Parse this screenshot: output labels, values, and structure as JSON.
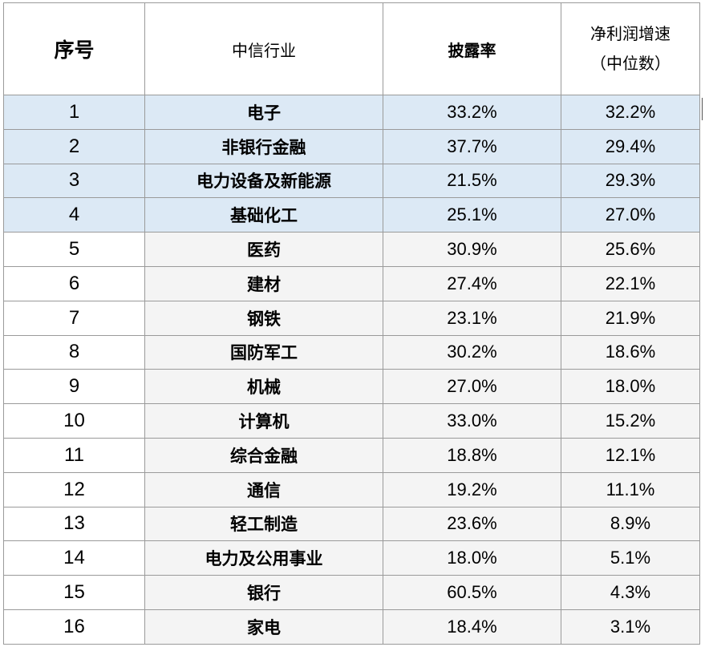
{
  "header": {
    "seq": "序号",
    "industry": "中信行业",
    "disclosure": "披露率",
    "growth_line1": "净利润增速",
    "growth_line2": "（中位数）"
  },
  "rows": [
    {
      "seq": "1",
      "industry": "电子",
      "disclosure": "33.2%",
      "growth": "32.2%",
      "highlight": true
    },
    {
      "seq": "2",
      "industry": "非银行金融",
      "disclosure": "37.7%",
      "growth": "29.4%",
      "highlight": true
    },
    {
      "seq": "3",
      "industry": "电力设备及新能源",
      "disclosure": "21.5%",
      "growth": "29.3%",
      "highlight": true
    },
    {
      "seq": "4",
      "industry": "基础化工",
      "disclosure": "25.1%",
      "growth": "27.0%",
      "highlight": true
    },
    {
      "seq": "5",
      "industry": "医药",
      "disclosure": "30.9%",
      "growth": "25.6%",
      "highlight": false
    },
    {
      "seq": "6",
      "industry": "建材",
      "disclosure": "27.4%",
      "growth": "22.1%",
      "highlight": false
    },
    {
      "seq": "7",
      "industry": "钢铁",
      "disclosure": "23.1%",
      "growth": "21.9%",
      "highlight": false
    },
    {
      "seq": "8",
      "industry": "国防军工",
      "disclosure": "30.2%",
      "growth": "18.6%",
      "highlight": false
    },
    {
      "seq": "9",
      "industry": "机械",
      "disclosure": "27.0%",
      "growth": "18.0%",
      "highlight": false
    },
    {
      "seq": "10",
      "industry": "计算机",
      "disclosure": "33.0%",
      "growth": "15.2%",
      "highlight": false
    },
    {
      "seq": "11",
      "industry": "综合金融",
      "disclosure": "18.8%",
      "growth": "12.1%",
      "highlight": false
    },
    {
      "seq": "12",
      "industry": "通信",
      "disclosure": "19.2%",
      "growth": "11.1%",
      "highlight": false
    },
    {
      "seq": "13",
      "industry": "轻工制造",
      "disclosure": "23.6%",
      "growth": "8.9%",
      "highlight": false
    },
    {
      "seq": "14",
      "industry": "电力及公用事业",
      "disclosure": "18.0%",
      "growth": "5.1%",
      "highlight": false
    },
    {
      "seq": "15",
      "industry": "银行",
      "disclosure": "60.5%",
      "growth": "4.3%",
      "highlight": false
    },
    {
      "seq": "16",
      "industry": "家电",
      "disclosure": "18.4%",
      "growth": "3.1%",
      "highlight": false
    }
  ],
  "colors": {
    "highlight_row": "#dce9f5",
    "plain_cell": "#f4f4f4",
    "border": "#9a9a9a"
  }
}
